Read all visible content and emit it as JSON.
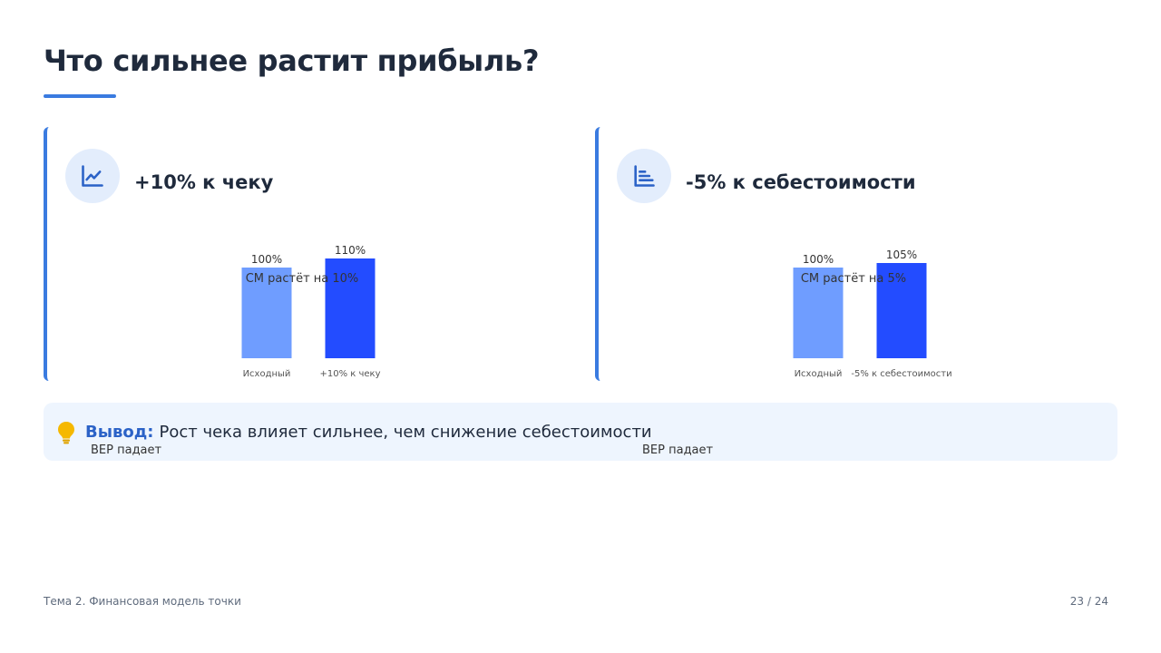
{
  "slide": {
    "title": "Что сильнее растит прибыль?"
  },
  "cards": [
    {
      "title": "+10% к чеку",
      "icon": "line-chart-icon",
      "caption_cm": "CM растёт на 10%",
      "caption_bep": "BEP падает"
    },
    {
      "title": "-5% к себестоимости",
      "icon": "bar-list-icon",
      "caption_cm": "CM растёт на 5%",
      "caption_bep": "BEP падает"
    }
  ],
  "chart_data": [
    {
      "type": "bar",
      "categories": [
        "Исходный",
        "+10% к чеку"
      ],
      "values": [
        100,
        110
      ],
      "value_labels": [
        "100%",
        "110%"
      ],
      "colors": [
        "#6f9dff",
        "#234cff"
      ]
    },
    {
      "type": "bar",
      "categories": [
        "Исходный",
        "-5% к себестоимости"
      ],
      "values": [
        100,
        105
      ],
      "value_labels": [
        "100%",
        "105%"
      ],
      "colors": [
        "#6f9dff",
        "#234cff"
      ]
    }
  ],
  "conclusion": {
    "label": "Вывод:",
    "text": "Рост чека влияет сильнее, чем снижение себестоимости"
  },
  "footer": {
    "topic": "Тема 2. Финансовая модель точки",
    "page": "23 / 24"
  },
  "colors": {
    "accent": "#3a7be0",
    "bar_base": "#6f9dff",
    "bar_highlight": "#234cff",
    "conclusion_bg": "#eef5fe",
    "bulb": "#f5b800"
  }
}
